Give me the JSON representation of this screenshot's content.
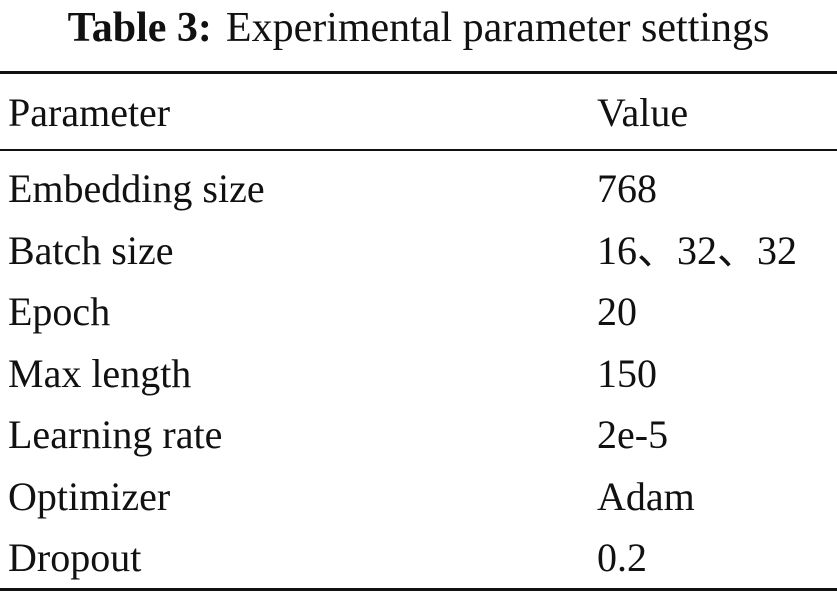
{
  "caption": {
    "label": "Table 3:",
    "text": "Experimental parameter settings"
  },
  "table": {
    "header": [
      "Parameter",
      "Value"
    ],
    "rows": [
      [
        "Embedding size",
        "768"
      ],
      [
        "Batch size",
        "16、32、32"
      ],
      [
        "Epoch",
        "20"
      ],
      [
        "Max length",
        "150"
      ],
      [
        "Learning rate",
        "2e-5"
      ],
      [
        "Optimizer",
        "Adam"
      ],
      [
        "Dropout",
        "0.2"
      ]
    ]
  }
}
